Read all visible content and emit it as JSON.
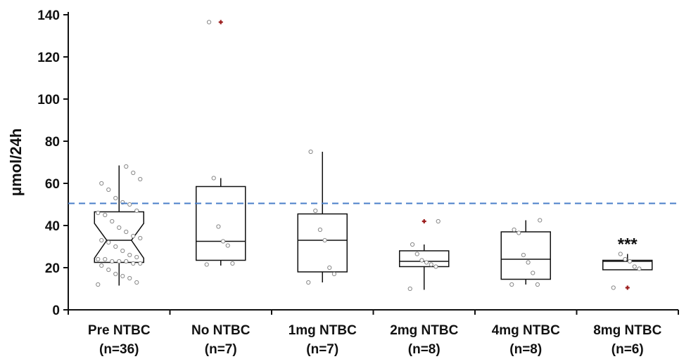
{
  "chart_data": {
    "type": "box",
    "title": "",
    "xlabel": "",
    "ylabel": "μmol/24h",
    "ylim": [
      0,
      140
    ],
    "yticks": [
      0,
      20,
      40,
      60,
      80,
      100,
      120,
      140
    ],
    "grid": false,
    "legend": "none",
    "reference_line": {
      "y": 50.5,
      "style": "dashed",
      "color": "#4a7fc9"
    },
    "categories": [
      {
        "line1": "Pre NTBC",
        "line2": "(n=36)"
      },
      {
        "line1": "No NTBC",
        "line2": "(n=7)"
      },
      {
        "line1": "1mg NTBC",
        "line2": "(n=7)"
      },
      {
        "line1": "2mg NTBC",
        "line2": "(n=8)"
      },
      {
        "line1": "4mg NTBC",
        "line2": "(n=8)"
      },
      {
        "line1": "8mg NTBC",
        "line2": "(n=6)"
      }
    ],
    "boxes": [
      {
        "q1": 22.5,
        "median": 33,
        "q3": 46.5,
        "whisker_low": 11.5,
        "whisker_high": 68.5,
        "notched": true,
        "notch_low": 24.5,
        "notch_high": 41,
        "outliers": []
      },
      {
        "q1": 23.5,
        "median": 32.5,
        "q3": 58.5,
        "whisker_low": 21,
        "whisker_high": 62.5,
        "notched": false,
        "outliers": [
          136.5
        ]
      },
      {
        "q1": 18,
        "median": 33,
        "q3": 45.5,
        "whisker_low": 13,
        "whisker_high": 75,
        "notched": false,
        "outliers": []
      },
      {
        "q1": 20.5,
        "median": 23,
        "q3": 28,
        "whisker_low": 9.5,
        "whisker_high": 31,
        "notched": false,
        "outliers": [
          42
        ]
      },
      {
        "q1": 14.5,
        "median": 24,
        "q3": 37,
        "whisker_low": 12,
        "whisker_high": 42.5,
        "notched": false,
        "outliers": []
      },
      {
        "q1": 19,
        "median": 23,
        "q3": 23.5,
        "whisker_low": 19,
        "whisker_high": 26.5,
        "notched": false,
        "outliers": [
          10.5
        ]
      }
    ],
    "points": [
      [
        12,
        13,
        15,
        16,
        17,
        19,
        21,
        22,
        22,
        23,
        23,
        23,
        24,
        24,
        25,
        26,
        28,
        30,
        32,
        33,
        34,
        35,
        37,
        39,
        42,
        45,
        46,
        47,
        50,
        51,
        53,
        57,
        60,
        62,
        65,
        68
      ],
      [
        21.5,
        22,
        30.5,
        32.5,
        39.5,
        62.5,
        136.5
      ],
      [
        13,
        17,
        20,
        33,
        38,
        47,
        75
      ],
      [
        10,
        20.5,
        21.5,
        22.5,
        23.5,
        26.5,
        31,
        42
      ],
      [
        12,
        12,
        17.5,
        22.5,
        26,
        36.5,
        38,
        42.5
      ],
      [
        10.5,
        19.5,
        20.5,
        23,
        24,
        26.5
      ]
    ],
    "annotations": [
      {
        "category_index": 5,
        "text": "***"
      }
    ],
    "colors": {
      "box": "#111111",
      "point": "#888888",
      "outlier": "#9b1c1c",
      "reference": "#4a7fc9"
    }
  }
}
